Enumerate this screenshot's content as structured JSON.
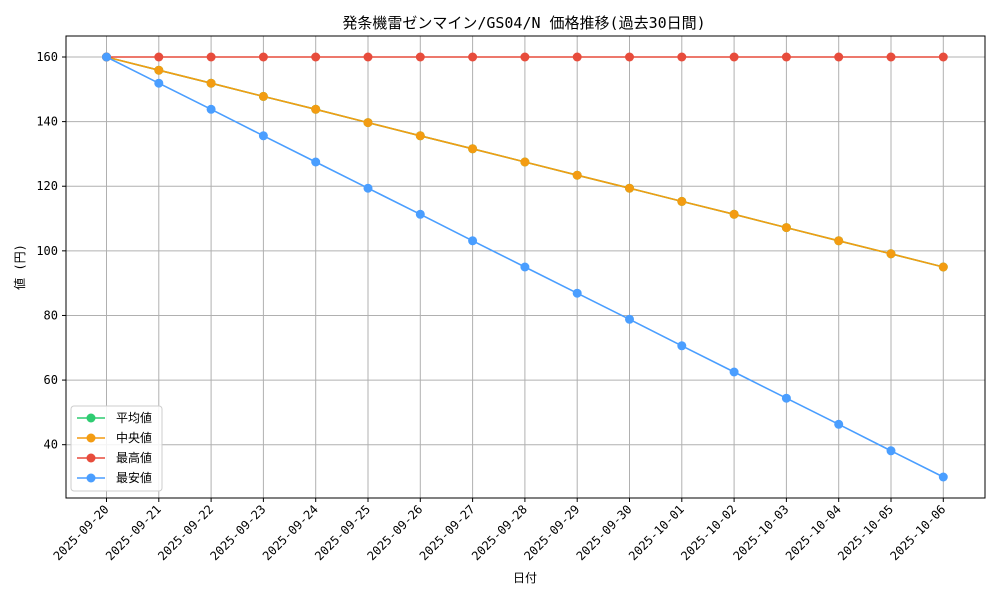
{
  "chart_data": {
    "type": "line",
    "title": "発条機雷ゼンマイン/GS04/N 価格推移(過去30日間)",
    "xlabel": "日付",
    "ylabel": "値 (円)",
    "ylim": [
      23.5,
      166.5
    ],
    "yticks": [
      40,
      60,
      80,
      100,
      120,
      140,
      160
    ],
    "grid": true,
    "legend_position": "lower-left",
    "categories": [
      "2025-09-20",
      "2025-09-21",
      "2025-09-22",
      "2025-09-23",
      "2025-09-24",
      "2025-09-25",
      "2025-09-26",
      "2025-09-27",
      "2025-09-28",
      "2025-09-29",
      "2025-09-30",
      "2025-10-01",
      "2025-10-02",
      "2025-10-03",
      "2025-10-04",
      "2025-10-05",
      "2025-10-06"
    ],
    "series": [
      {
        "name": "平均値",
        "color": "#2ecc71",
        "values": [
          160,
          155.9,
          151.9,
          147.8,
          143.8,
          139.7,
          135.6,
          131.6,
          127.5,
          123.4,
          119.4,
          115.3,
          111.3,
          107.2,
          103.1,
          99.1,
          95
        ]
      },
      {
        "name": "中央値",
        "color": "#f39c12",
        "values": [
          160,
          155.9,
          151.9,
          147.8,
          143.8,
          139.7,
          135.6,
          131.6,
          127.5,
          123.4,
          119.4,
          115.3,
          111.3,
          107.2,
          103.1,
          99.1,
          95
        ]
      },
      {
        "name": "最高値",
        "color": "#e74c3c",
        "values": [
          160,
          160,
          160,
          160,
          160,
          160,
          160,
          160,
          160,
          160,
          160,
          160,
          160,
          160,
          160,
          160,
          160
        ]
      },
      {
        "name": "最安値",
        "color": "#4a9eff",
        "values": [
          160,
          151.9,
          143.8,
          135.6,
          127.5,
          119.4,
          111.3,
          103.1,
          95,
          86.9,
          78.8,
          70.6,
          62.5,
          54.4,
          46.3,
          38.1,
          30
        ]
      }
    ]
  }
}
